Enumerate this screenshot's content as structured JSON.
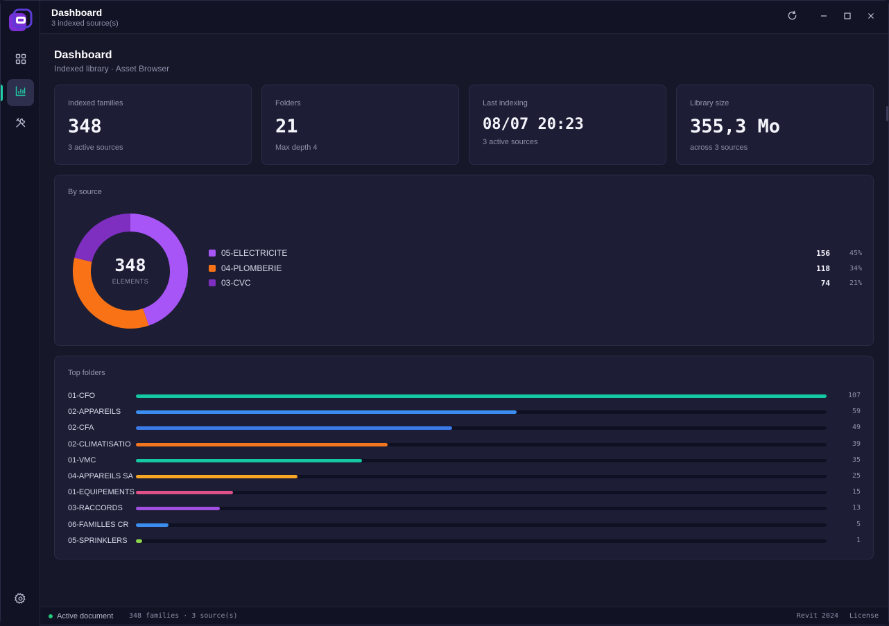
{
  "window": {
    "title": "Dashboard",
    "subtitle": "3 indexed source(s)"
  },
  "sidebar": {
    "items": [
      {
        "name": "grid-icon",
        "active": false
      },
      {
        "name": "chart-icon",
        "active": true
      },
      {
        "name": "tools-icon",
        "active": false
      }
    ],
    "footer_icon": "gear-icon"
  },
  "page": {
    "title": "Dashboard",
    "subtitle": "Indexed library · Asset Browser"
  },
  "stats": [
    {
      "label": "Indexed families",
      "value": "348",
      "note": "3 active sources"
    },
    {
      "label": "Folders",
      "value": "21",
      "note": "Max depth 4"
    },
    {
      "label": "Last indexing",
      "value": "08/07 20:23",
      "note": "3 active sources"
    },
    {
      "label": "Library size",
      "value": "355,3 Mo",
      "note": "across 3 sources"
    }
  ],
  "by_source": {
    "label": "By source",
    "total": "348",
    "caption": "ELEMENTS",
    "items": [
      {
        "name": "05-ELECTRICITE",
        "count": "156",
        "pct": "45%",
        "color": "#a855f7"
      },
      {
        "name": "04-PLOMBERIE",
        "count": "118",
        "pct": "34%",
        "color": "#f97316"
      },
      {
        "name": "03-CVC",
        "count": "74",
        "pct": "21%",
        "color": "#7e2fc0"
      }
    ]
  },
  "top_folders": {
    "label": "Top folders",
    "max": 107,
    "items": [
      {
        "name": "01-CFO",
        "value": "107",
        "color": "#14c8a3"
      },
      {
        "name": "02-APPAREILS",
        "value": "59",
        "color": "#3b8ef0"
      },
      {
        "name": "02-CFA",
        "value": "49",
        "color": "#3b7be8"
      },
      {
        "name": "02-CLIMATISATIO",
        "value": "39",
        "color": "#f2761e"
      },
      {
        "name": "01-VMC",
        "value": "35",
        "color": "#14c8a3"
      },
      {
        "name": "04-APPAREILS SA",
        "value": "25",
        "color": "#f5a623"
      },
      {
        "name": "01-EQUIPEMENTS",
        "value": "15",
        "color": "#e0508a"
      },
      {
        "name": "03-RACCORDS",
        "value": "13",
        "color": "#a04fe0"
      },
      {
        "name": "06-FAMILLES CR",
        "value": "5",
        "color": "#3b8ef0"
      },
      {
        "name": "05-SPRINKLERS",
        "value": "1",
        "color": "#8bd64a"
      }
    ]
  },
  "status": {
    "document": "Active document",
    "summary": "348 families · 3 source(s)",
    "version": "Revit 2024",
    "license": "License"
  }
}
